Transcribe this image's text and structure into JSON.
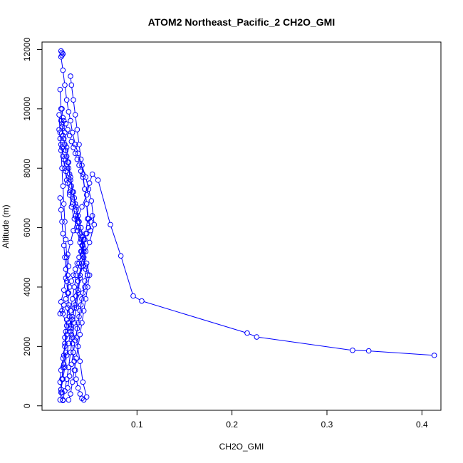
{
  "chart_data": {
    "type": "scatter",
    "title": "ATOM2 Northeast_Pacific_2 CH2O_GMI",
    "xlabel": "CH2O_GMI",
    "ylabel": "Altitude (m)",
    "xlim": [
      0.0,
      0.42
    ],
    "ylim": [
      -150,
      12250
    ],
    "x_ticks": [
      0.1,
      0.2,
      0.3,
      0.4
    ],
    "x_tick_labels": [
      "0.1",
      "0.2",
      "0.3",
      "0.4"
    ],
    "y_ticks": [
      0,
      2000,
      4000,
      6000,
      8000,
      10000,
      12000
    ],
    "y_tick_labels": [
      "0",
      "2000",
      "4000",
      "6000",
      "8000",
      "10000",
      "12000"
    ],
    "grid": false,
    "color": "#0000ff",
    "marker": "open-circle",
    "connected": true,
    "series": [
      {
        "x": [
          0.022,
          0.02,
          0.021,
          0.023,
          0.025,
          0.024,
          0.026,
          0.022,
          0.02,
          0.023,
          0.025,
          0.028,
          0.027,
          0.03,
          0.033,
          0.037,
          0.042,
          0.047,
          0.05,
          0.053,
          0.059,
          0.072,
          0.083,
          0.096,
          0.105,
          0.216,
          0.226,
          0.327,
          0.344,
          0.413
        ],
        "y": [
          180,
          450,
          900,
          1400,
          1800,
          2300,
          2700,
          3100,
          3500,
          3900,
          4300,
          4700,
          5100,
          5500,
          5900,
          6300,
          6700,
          7100,
          7500,
          7800,
          7600,
          6100,
          5050,
          3700,
          3530,
          2450,
          2320,
          1870,
          1850,
          1700
        ]
      },
      {
        "x": [
          0.02,
          0.021,
          0.022,
          0.021,
          0.02,
          0.022,
          0.024,
          0.026,
          0.028,
          0.03,
          0.032,
          0.035,
          0.038,
          0.042,
          0.046,
          0.049,
          0.052,
          0.055,
          0.05,
          0.046,
          0.043,
          0.04,
          0.038,
          0.035,
          0.032,
          0.03
        ],
        "y": [
          11950,
          11900,
          11850,
          11800,
          11750,
          11300,
          10800,
          10300,
          9900,
          9600,
          9200,
          8800,
          8500,
          8100,
          7700,
          7300,
          6900,
          6100,
          5500,
          5200,
          4700,
          4400,
          3900,
          3400,
          3000,
          2600
        ]
      },
      {
        "x": [
          0.019,
          0.02,
          0.021,
          0.023,
          0.025,
          0.027,
          0.029,
          0.031,
          0.034,
          0.036,
          0.038,
          0.04,
          0.042,
          0.044,
          0.046,
          0.045,
          0.043,
          0.041,
          0.039,
          0.037,
          0.035,
          0.033,
          0.031,
          0.029,
          0.027
        ],
        "y": [
          10650,
          10000,
          9500,
          9000,
          8600,
          8200,
          7800,
          7400,
          7000,
          6600,
          6200,
          5800,
          5400,
          5000,
          4600,
          4200,
          3800,
          3400,
          3000,
          2600,
          2200,
          1800,
          1400,
          1000,
          600
        ]
      },
      {
        "x": [
          0.018,
          0.019,
          0.021,
          0.023,
          0.025,
          0.027,
          0.029,
          0.031,
          0.034,
          0.037,
          0.04,
          0.043,
          0.046,
          0.048,
          0.045,
          0.042,
          0.04,
          0.038,
          0.036,
          0.04,
          0.043,
          0.047
        ],
        "y": [
          9300,
          9000,
          8700,
          8300,
          7900,
          7500,
          7100,
          6700,
          6300,
          5900,
          5500,
          5100,
          4700,
          4400,
          4000,
          3600,
          3200,
          2800,
          2300,
          1500,
          800,
          300
        ]
      },
      {
        "x": [
          0.02,
          0.021,
          0.022,
          0.024,
          0.026,
          0.028,
          0.03,
          0.032,
          0.035,
          0.038,
          0.041,
          0.044,
          0.042,
          0.039,
          0.036,
          0.034,
          0.032,
          0.03,
          0.028,
          0.026,
          0.024,
          0.022,
          0.02,
          0.019,
          0.021
        ],
        "y": [
          9600,
          9400,
          9100,
          8800,
          8400,
          8000,
          7600,
          7200,
          6800,
          6400,
          6000,
          5600,
          5200,
          4800,
          4400,
          4000,
          3600,
          3200,
          2800,
          2400,
          2000,
          1600,
          1200,
          800,
          450
        ]
      },
      {
        "x": [
          0.021,
          0.022,
          0.024,
          0.026,
          0.028,
          0.03,
          0.033,
          0.036,
          0.039,
          0.042,
          0.044,
          0.041,
          0.038,
          0.036,
          0.034,
          0.032,
          0.03,
          0.028,
          0.026,
          0.024,
          0.022,
          0.02
        ],
        "y": [
          10000,
          9700,
          9200,
          8700,
          8200,
          7700,
          7200,
          6700,
          6200,
          5700,
          5200,
          4700,
          4200,
          3700,
          3300,
          2900,
          2500,
          2100,
          1700,
          1300,
          900,
          550
        ]
      },
      {
        "x": [
          0.03,
          0.031,
          0.033,
          0.035,
          0.037,
          0.039,
          0.041,
          0.043,
          0.045,
          0.047,
          0.048,
          0.046,
          0.044,
          0.042,
          0.04,
          0.038,
          0.036,
          0.034,
          0.032,
          0.03,
          0.028,
          0.026,
          0.024,
          0.022
        ],
        "y": [
          11100,
          10800,
          10300,
          9800,
          9300,
          8800,
          8300,
          7800,
          7300,
          6800,
          6300,
          5800,
          5300,
          4800,
          4300,
          3800,
          3300,
          2800,
          2300,
          1800,
          1300,
          900,
          500,
          200
        ]
      },
      {
        "x": [
          0.018,
          0.019,
          0.02,
          0.021,
          0.022,
          0.023,
          0.024,
          0.025,
          0.026,
          0.027,
          0.028,
          0.027,
          0.026,
          0.025,
          0.024,
          0.023,
          0.022,
          0.021,
          0.02,
          0.019
        ],
        "y": [
          9800,
          9200,
          8600,
          8000,
          7400,
          6800,
          6200,
          5600,
          5000,
          4400,
          3800,
          3300,
          2900,
          2500,
          2100,
          1700,
          1300,
          900,
          550,
          200
        ]
      },
      {
        "x": [
          0.02,
          0.022,
          0.024,
          0.026,
          0.029,
          0.032,
          0.035,
          0.038,
          0.041,
          0.044,
          0.047,
          0.05,
          0.048,
          0.046,
          0.044,
          0.042,
          0.04,
          0.038,
          0.036,
          0.034,
          0.032,
          0.03,
          0.028
        ],
        "y": [
          8800,
          8400,
          8000,
          7600,
          7200,
          6800,
          6400,
          6000,
          5600,
          5200,
          4800,
          4400,
          4000,
          3600,
          3200,
          2800,
          2400,
          2000,
          1600,
          1200,
          800,
          400,
          200
        ]
      },
      {
        "x": [
          0.023,
          0.025,
          0.027,
          0.029,
          0.031,
          0.033,
          0.035,
          0.037,
          0.039,
          0.041,
          0.043,
          0.045,
          0.047,
          0.049,
          0.051
        ],
        "y": [
          9600,
          9500,
          9300,
          9100,
          8900,
          8700,
          8500,
          8300,
          8100,
          7900,
          7700,
          7300,
          6800,
          6300,
          5900
        ]
      },
      {
        "x": [
          0.019,
          0.02,
          0.021,
          0.022,
          0.023,
          0.024,
          0.025,
          0.026,
          0.027,
          0.028,
          0.029,
          0.03,
          0.031,
          0.032,
          0.033,
          0.034,
          0.035,
          0.036,
          0.038,
          0.04,
          0.042,
          0.044
        ],
        "y": [
          7000,
          6600,
          6200,
          5800,
          5400,
          5000,
          4600,
          4200,
          3800,
          3400,
          3000,
          2700,
          2400,
          2100,
          1800,
          1500,
          1200,
          900,
          600,
          400,
          250,
          200
        ]
      },
      {
        "x": [
          0.019,
          0.021,
          0.023,
          0.025,
          0.027,
          0.029,
          0.031,
          0.033,
          0.035,
          0.037,
          0.039,
          0.041,
          0.043,
          0.045,
          0.047,
          0.049,
          0.051,
          0.053
        ],
        "y": [
          3100,
          3200,
          3400,
          3600,
          3800,
          4000,
          4200,
          4400,
          4600,
          4800,
          5000,
          5200,
          5400,
          5600,
          5800,
          6000,
          6200,
          6400
        ]
      }
    ]
  }
}
